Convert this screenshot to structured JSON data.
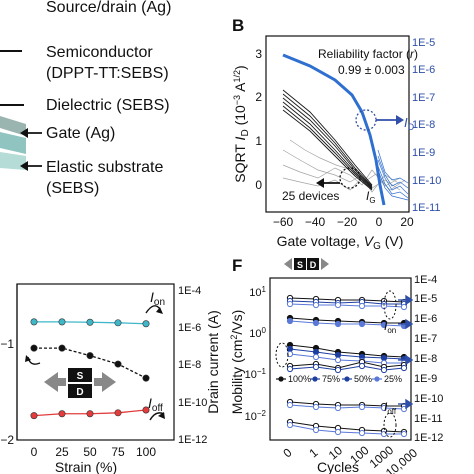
{
  "layer_labels": {
    "source_drain": "Source/drain (Ag)",
    "semiconductor_line1": "Semiconductor",
    "semiconductor_line2": "(DPPT-TT:SEBS)",
    "dielectric": "Dielectric (SEBS)",
    "gate": "Gate (Ag)",
    "substrate_line1": "Elastic substrate",
    "substrate_line2": "(SEBS)"
  },
  "panel_B": {
    "letter": "B",
    "reliability_label": "Reliability factor (r)",
    "reliability_value": "0.99 ± 0.003",
    "devices_label": "25 devices",
    "id_label": "I_D",
    "ig_label": "I_G",
    "ylabel_left": "SQRT I_D (10^-3 A^1/2)",
    "ylabel_right": "",
    "xlabel": "Gate voltage, V_G (V)",
    "colors": {
      "sqrt": "#1a1a1a",
      "id": "#2f6fd0",
      "ig": "#9a9a9a"
    }
  },
  "panel_E": {
    "ylabel_right": "Drain current (A)",
    "xlabel": "Strain (%)",
    "ion_label": "I_on",
    "ioff_label": "I_off",
    "device_s": "S",
    "device_d": "D",
    "colors": {
      "ion": "#3fb7c9",
      "mid": "#111111",
      "ioff": "#e23c3c"
    }
  },
  "panel_F": {
    "letter": "F",
    "ylabel": "Mobility (cm²/Vs)",
    "xlabel": "Cycles",
    "device_s": "S",
    "device_d": "D",
    "ion_label": "I_on",
    "ioff_label": "I_off",
    "legend": [
      "100%",
      "75%",
      "50%",
      "25%"
    ],
    "colors": {
      "dark": "#111111",
      "mid": "#1f3fa0",
      "light": "#5a78d8"
    }
  },
  "chart_data": [
    {
      "type": "line",
      "panel": "B",
      "xlabel": "Gate voltage, V_G (V)",
      "ylabel": "SQRT I_D (10^-3 A^1/2)",
      "xlim": [
        -65,
        22
      ],
      "ylim": [
        -0.2,
        3.2
      ],
      "x_ticks": [
        -60,
        -40,
        -20,
        0,
        20
      ],
      "y_ticks_left": [
        0,
        1,
        2,
        3
      ],
      "y_ticks_right": [
        "1E-11",
        "1E-10",
        "1E-9",
        "1E-8",
        "1E-7",
        "1E-6",
        "1E-5"
      ],
      "series": [
        {
          "values_x": [
            -60,
            -40,
            -20,
            0,
            10
          ],
          "values_y": [
            2.8,
            2.35,
            1.55,
            0.45,
            0.05
          ]
        },
        {
          "values_x": [
            -60,
            -40,
            -20,
            0,
            10
          ],
          "values_y": [
            2.0,
            1.5,
            0.95,
            0.3,
            0.05
          ]
        }
      ]
    },
    {
      "type": "line",
      "panel": "E",
      "xlabel": "Strain (%)",
      "x": [
        0,
        25,
        50,
        75,
        100
      ],
      "y_ticks_right": [
        "1E-12",
        "1E-10",
        "1E-8",
        "1E-6",
        "1E-4"
      ],
      "y_ticks_left": [
        "-1",
        "-2"
      ],
      "series": [
        {
          "name": "I_on",
          "values": [
            -5.7,
            -5.7,
            -5.72,
            -5.75,
            -5.8
          ]
        },
        {
          "name": "",
          "values": [
            -7.1,
            -7.1,
            -7.5,
            -7.95,
            -8.7
          ]
        },
        {
          "name": "I_off",
          "values": [
            -10.7,
            -10.6,
            -10.6,
            -10.55,
            -10.4
          ]
        }
      ]
    },
    {
      "type": "line",
      "panel": "F",
      "xlabel": "Cycles",
      "ylabel": "Mobility (cm²/Vs)",
      "x": [
        "0",
        "1",
        "10",
        "100",
        "1000",
        "10,000"
      ],
      "y_ticks_left": [
        "10^-2",
        "10^-1",
        "10^0",
        "10^1"
      ],
      "y_ticks_right": [
        "1E-12",
        "1E-11",
        "1E-10",
        "1E-9",
        "1E-8",
        "1E-7",
        "1E-6",
        "1E-5",
        "1E-4"
      ]
    }
  ]
}
